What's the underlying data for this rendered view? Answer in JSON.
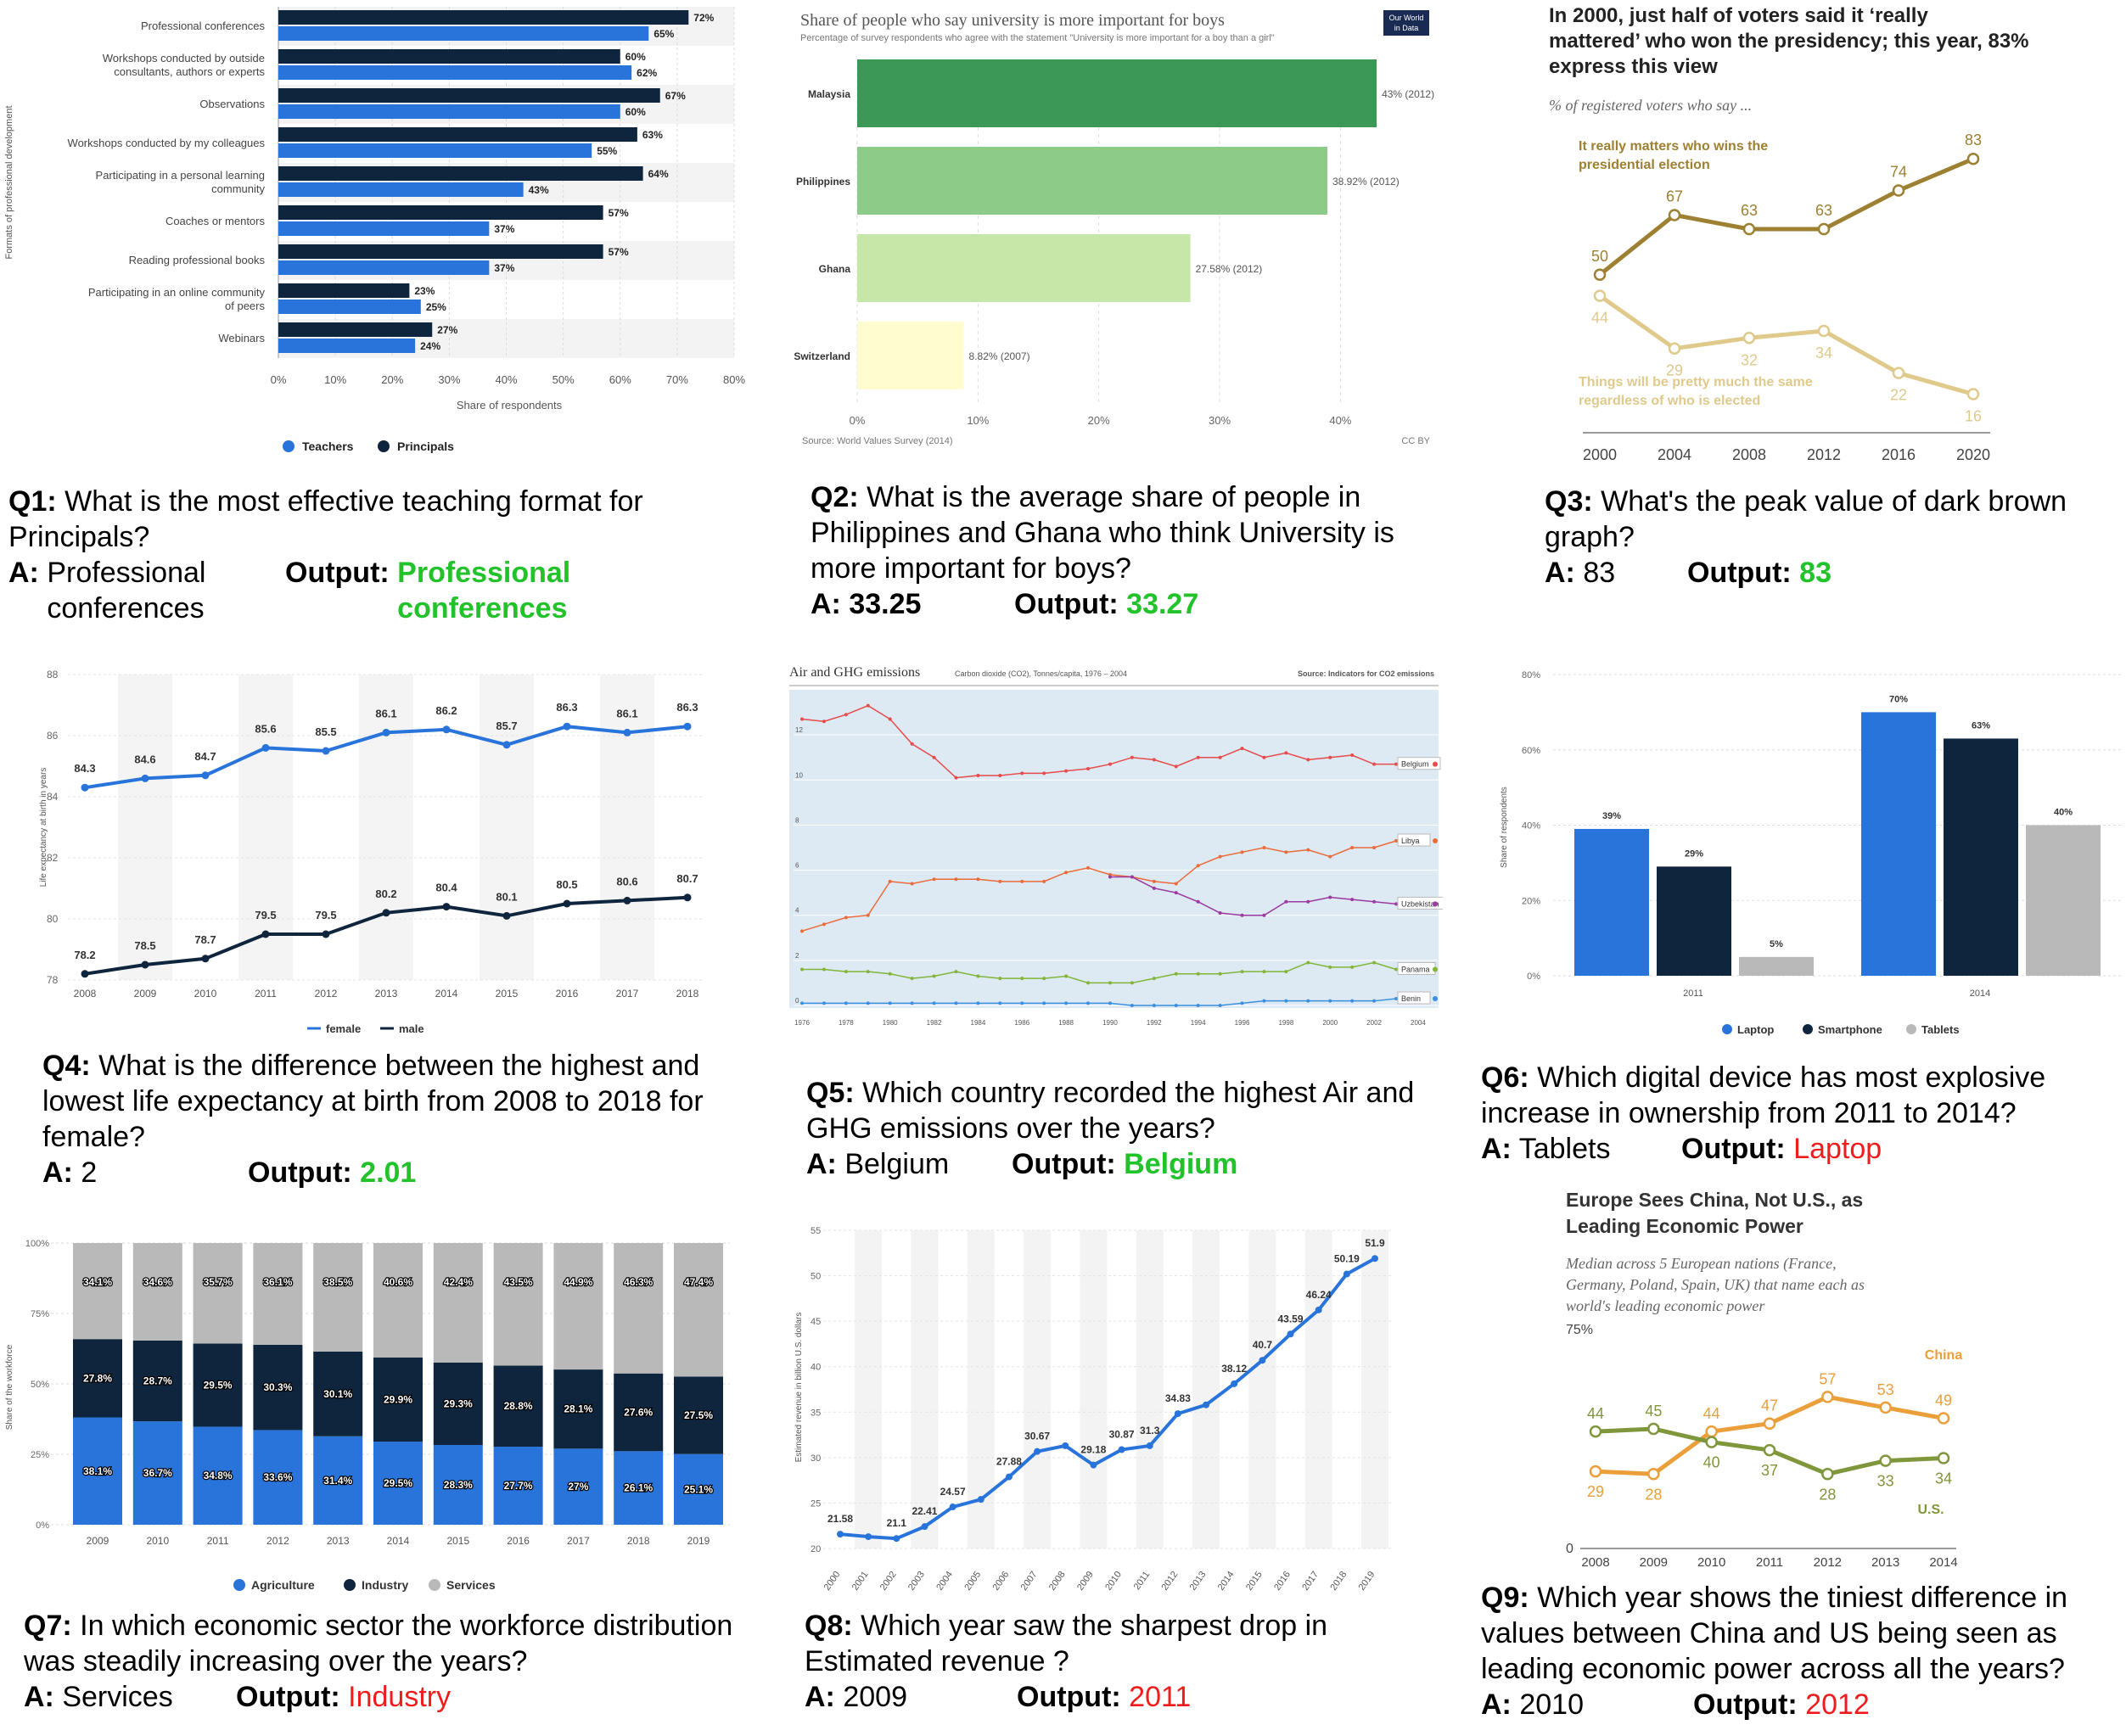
{
  "panels": [
    {
      "q": "Q1:",
      "question": "What is the most effective teaching format for Principals?",
      "a_label": "A:",
      "answer": "Professional conferences",
      "out_label": "Output:",
      "output": "Professional conferences",
      "output_correct": true
    },
    {
      "q": "Q2:",
      "question": "What is the average share of people in Philippines and Ghana who think University is more important for boys?",
      "a_label": "A:",
      "answer": "33.25",
      "out_label": "Output:",
      "output": "33.27",
      "output_correct": true
    },
    {
      "q": "Q3:",
      "question": "What's the peak value of dark brown graph?",
      "a_label": "A:",
      "answer": "83",
      "out_label": "Output:",
      "output": "83",
      "output_correct": true
    },
    {
      "q": "Q4:",
      "question": "What is the difference between the highest and lowest life expectancy at birth from 2008 to 2018 for female?",
      "a_label": "A:",
      "answer": "2",
      "out_label": "Output:",
      "output": "2.01",
      "output_correct": true
    },
    {
      "q": "Q5:",
      "question": "Which country recorded the highest Air and GHG emissions over the years?",
      "a_label": "A:",
      "answer": "Belgium",
      "out_label": "Output:",
      "output": "Belgium",
      "output_correct": true
    },
    {
      "q": "Q6:",
      "question": "Which digital device has most explosive increase in ownership from 2011 to 2014?",
      "a_label": "A:",
      "answer": "Tablets",
      "out_label": "Output:",
      "output": "Laptop",
      "output_correct": false
    },
    {
      "q": "Q7:",
      "question": "In which economic sector the workforce distribution was steadily increasing over the years?",
      "a_label": "A:",
      "answer": "Services",
      "out_label": "Output:",
      "output": "Industry",
      "output_correct": false
    },
    {
      "q": "Q8:",
      "question": "Which year saw the sharpest drop in Estimated revenue ?",
      "a_label": "A:",
      "answer": "2009",
      "out_label": "Output:",
      "output": "2011",
      "output_correct": false
    },
    {
      "q": "Q9:",
      "question": "Which year shows the tiniest difference in values between China and US being seen as leading economic power across all the years?",
      "a_label": "A:",
      "answer": "2010",
      "out_label": "Output:",
      "output": "2012",
      "output_correct": false
    }
  ],
  "colors": {
    "correct": "#22c22a",
    "wrong": "#ee1c1c",
    "statBlue": "#2874db",
    "statNavy": "#0f253d",
    "statGray": "#b9b9b9",
    "owidGreen1": "#3b9856",
    "owidGreen2": "#8ccb88",
    "owidGreen3": "#c7e7a8",
    "owidYellow": "#fffccf",
    "pewDark": "#9e8033",
    "pewLight": "#dfc98b",
    "pewChina": "#ea9f3a",
    "pewUS": "#7f963b"
  },
  "chart_data": [
    {
      "id": "c1",
      "type": "bar",
      "orientation": "horizontal",
      "categories": [
        "Professional conferences",
        "Workshops conducted by outside consultants, authors or experts",
        "Observations",
        "Workshops conducted by my colleagues",
        "Participating in a personal learning community",
        "Coaches or mentors",
        "Reading professional books",
        "Participating in an online community of peers",
        "Webinars"
      ],
      "series": [
        {
          "name": "Principals",
          "values": [
            72,
            60,
            67,
            63,
            64,
            57,
            57,
            23,
            27
          ]
        },
        {
          "name": "Teachers",
          "values": [
            65,
            62,
            60,
            55,
            43,
            37,
            37,
            25,
            24
          ]
        }
      ],
      "value_labels": {
        "Principals": [
          "72%",
          "60%",
          "67%",
          "63%",
          "64%",
          "57%",
          "57%",
          "23%",
          "27%"
        ],
        "Teachers": [
          "65%",
          "62%",
          "60%",
          "55%",
          "43%",
          "37%",
          "37%",
          "25%",
          "24%"
        ]
      },
      "xlim": [
        0,
        80
      ],
      "xticks": [
        "0%",
        "10%",
        "20%",
        "30%",
        "40%",
        "50%",
        "60%",
        "70%",
        "80%"
      ],
      "xlabel": "Share of respondents",
      "ylabel": "Formats of professional development",
      "legend": [
        "Teachers",
        "Principals"
      ]
    },
    {
      "id": "c2",
      "type": "bar",
      "orientation": "horizontal",
      "title": "Share of people who say university is more important for boys",
      "subtitle": "Percentage of survey respondents who agree with the statement \"University is more important for a boy than a girl\"",
      "categories": [
        "Malaysia",
        "Philippines",
        "Ghana",
        "Switzerland"
      ],
      "values": [
        43,
        38.92,
        27.58,
        8.82
      ],
      "value_labels": [
        "43% (2012)",
        "38.92% (2012)",
        "27.58% (2012)",
        "8.82% (2007)"
      ],
      "xlim": [
        0,
        48
      ],
      "xticks": [
        "0%",
        "10%",
        "20%",
        "30%",
        "40%"
      ],
      "source": "Source: World Values Survey (2014)",
      "license": "CC BY",
      "logo": "Our World in Data"
    },
    {
      "id": "c3",
      "type": "line",
      "title": "In 2000, just half of voters said it ‘really mattered’ who won the presidency; this year, 83% express this view",
      "subtitle": "% of registered voters who say ...",
      "x": [
        2000,
        2004,
        2008,
        2012,
        2016,
        2020
      ],
      "series": [
        {
          "name": "It really matters who wins the presidential election",
          "values": [
            50,
            67,
            63,
            63,
            74,
            83
          ]
        },
        {
          "name": "Things will be pretty much the same regardless of who is elected",
          "values": [
            44,
            29,
            32,
            34,
            22,
            16
          ]
        }
      ],
      "xticks": [
        "2000",
        "2004",
        "2008",
        "2012",
        "2016",
        "2020"
      ],
      "ylim": [
        5,
        92
      ]
    },
    {
      "id": "c4",
      "type": "line",
      "x": [
        2008,
        2009,
        2010,
        2011,
        2012,
        2013,
        2014,
        2015,
        2016,
        2017,
        2018
      ],
      "series": [
        {
          "name": "female",
          "values": [
            84.3,
            84.6,
            84.7,
            85.6,
            85.5,
            86.1,
            86.2,
            85.7,
            86.3,
            86.1,
            86.3
          ]
        },
        {
          "name": "male",
          "values": [
            78.2,
            78.5,
            78.7,
            79.5,
            79.5,
            80.2,
            80.4,
            80.1,
            80.5,
            80.6,
            80.7
          ]
        }
      ],
      "ylim": [
        78,
        88
      ],
      "yticks": [
        "78",
        "80",
        "82",
        "84",
        "86",
        "88"
      ],
      "ylabel": "Life expectancy at birth in years",
      "legend": [
        "female",
        "male"
      ]
    },
    {
      "id": "c5",
      "type": "line",
      "title": "Air and GHG emissions",
      "subtitle": "Carbon dioxide (CO2), Tonnes/capita, 1976 – 2004",
      "source": "Source: Indicators for CO2 emissions",
      "x": [
        1976,
        1977,
        1978,
        1979,
        1980,
        1981,
        1982,
        1983,
        1984,
        1985,
        1986,
        1987,
        1988,
        1989,
        1990,
        1991,
        1992,
        1993,
        1994,
        1995,
        1996,
        1997,
        1998,
        1999,
        2000,
        2001,
        2002,
        2003
      ],
      "series": [
        {
          "name": "Belgium",
          "values": [
            12.7,
            12.6,
            12.9,
            13.3,
            12.7,
            11.6,
            11,
            10.1,
            10.2,
            10.2,
            10.3,
            10.3,
            10.4,
            10.5,
            10.7,
            11,
            10.9,
            10.6,
            11,
            11,
            11.4,
            11,
            11.2,
            10.9,
            11,
            11.1,
            10.7,
            10.7
          ]
        },
        {
          "name": "Libya",
          "values": [
            3.3,
            3.6,
            3.9,
            4,
            5.5,
            5.4,
            5.6,
            5.6,
            5.6,
            5.5,
            5.5,
            5.5,
            5.9,
            6.1,
            5.8,
            5.7,
            5.5,
            5.4,
            6.2,
            6.6,
            6.8,
            7,
            6.8,
            6.9,
            6.6,
            7,
            7,
            7.3
          ]
        },
        {
          "name": "Uzbekistan",
          "values": [
            null,
            null,
            null,
            null,
            null,
            null,
            null,
            null,
            null,
            null,
            null,
            null,
            null,
            null,
            5.7,
            5.7,
            5.2,
            5,
            4.6,
            4.1,
            4,
            4,
            4.6,
            4.6,
            4.8,
            4.7,
            4.6,
            4.5
          ]
        },
        {
          "name": "Panama",
          "values": [
            1.6,
            1.6,
            1.5,
            1.5,
            1.4,
            1.2,
            1.3,
            1.5,
            1.3,
            1.2,
            1.2,
            1.2,
            1.3,
            1,
            1,
            1,
            1.2,
            1.4,
            1.4,
            1.4,
            1.5,
            1.5,
            1.5,
            1.9,
            1.7,
            1.7,
            1.9,
            1.6
          ]
        },
        {
          "name": "Benin",
          "values": [
            0.1,
            0.1,
            0.1,
            0.1,
            0.1,
            0.1,
            0.1,
            0.1,
            0.1,
            0.1,
            0.1,
            0.1,
            0.1,
            0.1,
            0.1,
            0,
            0,
            0,
            0,
            0,
            0.1,
            0.2,
            0.2,
            0.2,
            0.2,
            0.2,
            0.2,
            0.3
          ]
        }
      ],
      "yticks": [
        "0",
        "2",
        "4",
        "6",
        "8",
        "10",
        "12"
      ],
      "xticks": [
        "1976",
        "1978",
        "1980",
        "1982",
        "1984",
        "1986",
        "1988",
        "1990",
        "1992",
        "1994",
        "1996",
        "1998",
        "2000",
        "2002",
        "2004"
      ],
      "ylim": [
        0,
        14
      ]
    },
    {
      "id": "c6",
      "type": "bar",
      "categories": [
        "2011",
        "2014"
      ],
      "series": [
        {
          "name": "Laptop",
          "values": [
            39,
            70
          ]
        },
        {
          "name": "Smartphone",
          "values": [
            29,
            63
          ]
        },
        {
          "name": "Tablets",
          "values": [
            5,
            40
          ]
        }
      ],
      "ylim": [
        0,
        80
      ],
      "yticks": [
        "0%",
        "20%",
        "40%",
        "60%",
        "80%"
      ],
      "ylabel": "Share of respondents",
      "legend": [
        "Laptop",
        "Smartphone",
        "Tablets"
      ]
    },
    {
      "id": "c7",
      "type": "bar",
      "stacked": true,
      "categories": [
        "2009",
        "2010",
        "2011",
        "2012",
        "2013",
        "2014",
        "2015",
        "2016",
        "2017",
        "2018",
        "2019"
      ],
      "series": [
        {
          "name": "Agriculture",
          "values": [
            38.1,
            36.7,
            34.8,
            33.6,
            31.4,
            29.5,
            28.3,
            27.7,
            27,
            26.1,
            25.1
          ],
          "labels": [
            "38.1%",
            "36.7%",
            "34.8%",
            "33.6%",
            "31.4%",
            "29.5%",
            "28.3%",
            "27.7%",
            "27%",
            "26.1%",
            "25.1%"
          ]
        },
        {
          "name": "Industry",
          "values": [
            27.8,
            28.7,
            29.5,
            30.3,
            30.1,
            29.9,
            29.3,
            28.8,
            28.1,
            27.6,
            27.5
          ],
          "labels": [
            "27.8%",
            "28.7%",
            "29.5%",
            "30.3%",
            "30.1%",
            "29.9%",
            "29.3%",
            "28.8%",
            "28.1%",
            "27.6%",
            "27.5%"
          ]
        },
        {
          "name": "Services",
          "values": [
            34.1,
            34.6,
            35.7,
            36.1,
            38.5,
            40.6,
            42.4,
            43.5,
            44.9,
            46.3,
            47.4
          ],
          "labels": [
            "34.1%",
            "34.6%",
            "35.7%",
            "36.1%",
            "38.5%",
            "40.6%",
            "42.4%",
            "43.5%",
            "44.9%",
            "46.3%",
            "47.4%"
          ]
        }
      ],
      "ylim": [
        0,
        100
      ],
      "yticks": [
        "0%",
        "25%",
        "50%",
        "75%",
        "100%"
      ],
      "ylabel": "Share of the workforce",
      "legend": [
        "Agriculture",
        "Industry",
        "Services"
      ]
    },
    {
      "id": "c8",
      "type": "line",
      "x": [
        "2000",
        "2001",
        "2002",
        "2003",
        "2004",
        "2005",
        "2006",
        "2007",
        "2008",
        "2009",
        "2010",
        "2011",
        "2012",
        "2013",
        "2014",
        "2015",
        "2016",
        "2017",
        "2018",
        "2019"
      ],
      "values": [
        21.58,
        21.3,
        21.1,
        22.41,
        24.57,
        25.4,
        27.88,
        30.67,
        31.3,
        29.18,
        30.87,
        31.3,
        34.83,
        35.8,
        38.12,
        40.7,
        43.59,
        46.24,
        50.19,
        51.9
      ],
      "labels": [
        "21.58",
        "",
        "21.1",
        "22.41",
        "24.57",
        "",
        "27.88",
        "30.67",
        "",
        "29.18",
        "30.87",
        "31.3",
        "34.83",
        "",
        "38.12",
        "40.7",
        "43.59",
        "46.24",
        "50.19",
        "51.9"
      ],
      "ylim": [
        20,
        55
      ],
      "yticks": [
        "20",
        "25",
        "30",
        "35",
        "40",
        "45",
        "50",
        "55"
      ],
      "ylabel": "Estimated revenue in billion U.S. dollars"
    },
    {
      "id": "c9",
      "type": "line",
      "title": "Europe Sees China, Not U.S., as Leading Economic Power",
      "subtitle": "Median across 5 European nations (France, Germany, Poland, Spain, UK) that name each as world's leading economic power",
      "x": [
        2008,
        2009,
        2010,
        2011,
        2012,
        2013,
        2014
      ],
      "series": [
        {
          "name": "China",
          "values": [
            29,
            28,
            44,
            47,
            57,
            53,
            49
          ]
        },
        {
          "name": "U.S.",
          "values": [
            44,
            45,
            40,
            37,
            28,
            33,
            34
          ]
        }
      ],
      "ylim": [
        0,
        75
      ],
      "yticks": [
        "0",
        "75%"
      ],
      "xticks": [
        "2008",
        "2009",
        "2010",
        "2011",
        "2012",
        "2013",
        "2014"
      ]
    }
  ]
}
